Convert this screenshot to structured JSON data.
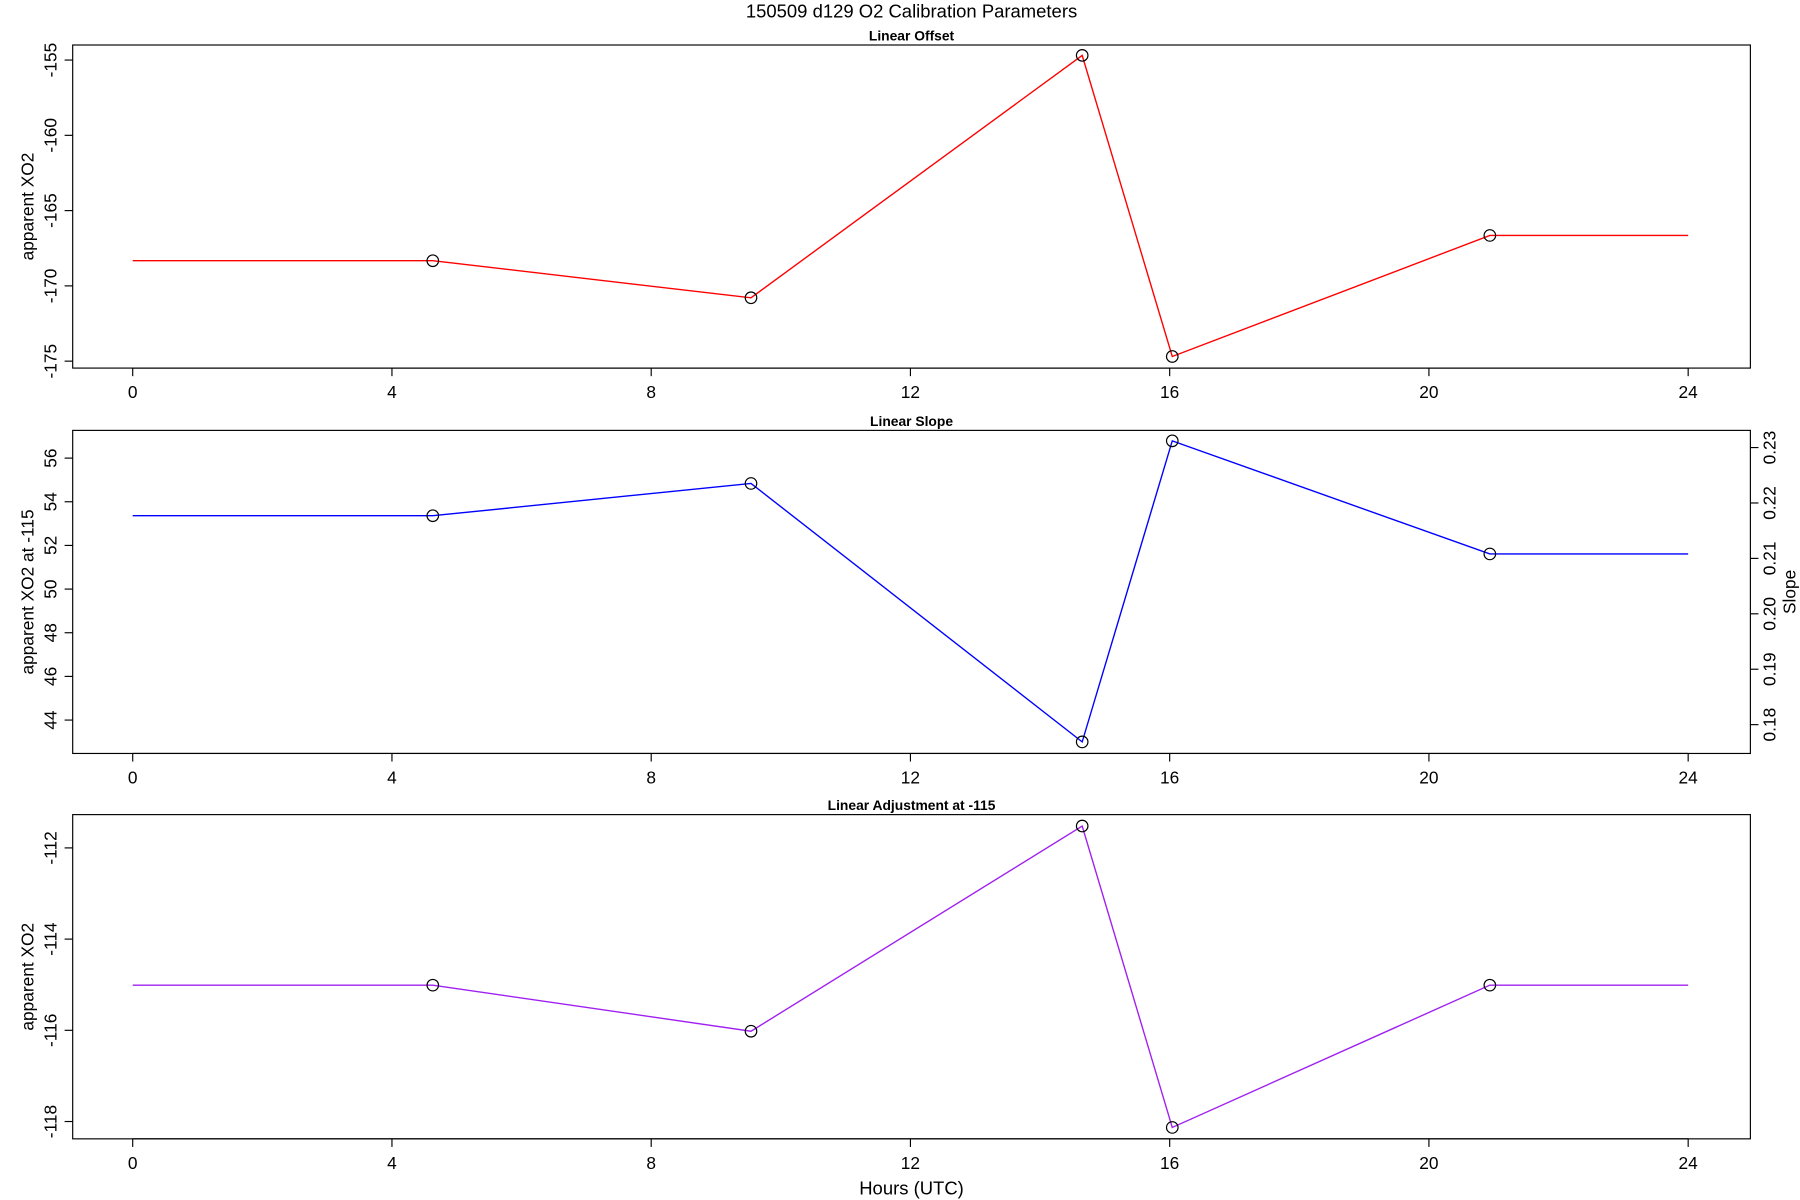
{
  "title": "150509   d129   O2 Calibration Parameters",
  "chart_data": [
    {
      "type": "line",
      "title": "Linear Offset",
      "y_label": "apparent XO2",
      "x": [
        0,
        4.63,
        9.54,
        14.65,
        16.04,
        20.94,
        24
      ],
      "series": [
        {
          "color": "#ff0000",
          "marker": "circle",
          "values": [
            -168.33,
            -168.33,
            -170.79,
            -154.69,
            -174.69,
            -166.65,
            -166.65
          ]
        }
      ],
      "xlim": [
        -0.926,
        24.96
      ],
      "xticks": [
        0,
        4,
        8,
        12,
        16,
        20,
        24
      ],
      "ylim": [
        -175.46,
        -154.0
      ],
      "yticks": [
        -175,
        -170,
        -165,
        -160,
        -155
      ]
    },
    {
      "type": "line",
      "title": "Linear Slope",
      "y_label": "apparent XO2 at -115",
      "y2_label": "Slope",
      "x": [
        0,
        4.63,
        9.54,
        14.65,
        16.04,
        20.94,
        24
      ],
      "series": [
        {
          "color": "#0000ff",
          "marker": "circle",
          "values": [
            53.36,
            53.36,
            54.84,
            43.0,
            56.79,
            51.61,
            51.61
          ]
        }
      ],
      "xlim": [
        -0.926,
        24.96
      ],
      "xticks": [
        0,
        4,
        8,
        12,
        16,
        20,
        24
      ],
      "ylim": [
        42.47,
        57.27
      ],
      "yticks": [
        44,
        46,
        48,
        50,
        52,
        54,
        56
      ],
      "y2lim": [
        0.1748,
        0.2331
      ],
      "y2ticks": [
        0.18,
        0.19,
        {
          "value": 0.2,
          "label": "0.20"
        },
        0.21,
        0.22,
        0.23
      ]
    },
    {
      "type": "line",
      "title": "Linear Adjustment at -115",
      "y_label": "apparent XO2",
      "x_label": "Hours (UTC)",
      "x": [
        0,
        4.63,
        9.54,
        14.65,
        16.04,
        20.94,
        24
      ],
      "series": [
        {
          "color": "#a020f0",
          "marker": "circle",
          "values": [
            -115.01,
            -115.01,
            -116.02,
            -111.52,
            -118.13,
            -115.01,
            -115.01
          ]
        }
      ],
      "xlim": [
        -0.926,
        24.96
      ],
      "xticks": [
        0,
        4,
        8,
        12,
        16,
        20,
        24
      ],
      "ylim": [
        -118.38,
        -111.27
      ],
      "yticks": [
        -118,
        -116,
        -114,
        -112
      ]
    }
  ]
}
